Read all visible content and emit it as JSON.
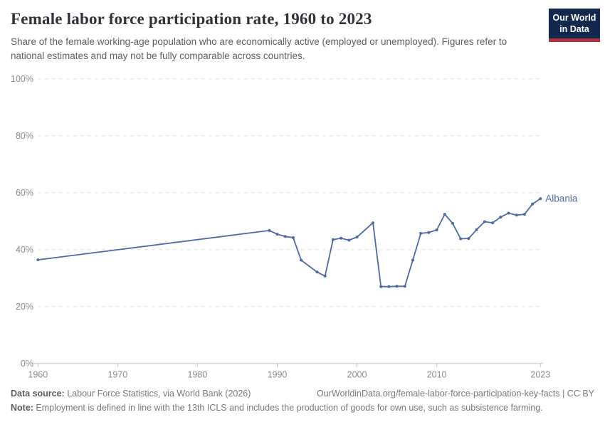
{
  "header": {
    "title": "Female labor force participation rate, 1960 to 2023",
    "subtitle": "Share of the female working-age population who are economically active (employed or unemployed). Figures refer to national estimates and may not be fully comparable across countries.",
    "logo": {
      "line1": "Our World",
      "line2": "in Data"
    }
  },
  "chart_data": {
    "type": "line",
    "title": "Female labor force participation rate, 1960 to 2023",
    "unit": "%",
    "xlim": [
      1960,
      2023
    ],
    "ylim": [
      0,
      100
    ],
    "x_ticks": [
      1960,
      1970,
      1980,
      1990,
      2000,
      2010,
      2023
    ],
    "y_ticks": [
      0,
      20,
      40,
      60,
      80,
      100
    ],
    "grid": true,
    "legend_position": "end-of-line",
    "series": [
      {
        "name": "Albania",
        "color": "#4e69a7",
        "points": [
          [
            1960,
            36.4
          ],
          [
            1989,
            46.7
          ],
          [
            1990,
            45.4
          ],
          [
            1991,
            44.6
          ],
          [
            1992,
            44.2
          ],
          [
            1993,
            36.3
          ],
          [
            1995,
            32.1
          ],
          [
            1996,
            30.7
          ],
          [
            1997,
            43.5
          ],
          [
            1998,
            44.0
          ],
          [
            1999,
            43.3
          ],
          [
            2000,
            44.4
          ],
          [
            2002,
            49.4
          ],
          [
            2003,
            27.0
          ],
          [
            2004,
            27.0
          ],
          [
            2005,
            27.1
          ],
          [
            2006,
            27.1
          ],
          [
            2007,
            36.3
          ],
          [
            2008,
            45.7
          ],
          [
            2009,
            46.0
          ],
          [
            2010,
            46.9
          ],
          [
            2011,
            52.4
          ],
          [
            2012,
            49.2
          ],
          [
            2013,
            43.8
          ],
          [
            2014,
            43.9
          ],
          [
            2015,
            47.0
          ],
          [
            2016,
            49.8
          ],
          [
            2017,
            49.4
          ],
          [
            2018,
            51.4
          ],
          [
            2019,
            52.8
          ],
          [
            2020,
            52.1
          ],
          [
            2021,
            52.4
          ],
          [
            2022,
            56.0
          ],
          [
            2023,
            57.9
          ]
        ]
      }
    ]
  },
  "footer": {
    "data_source_label": "Data source:",
    "data_source": " Labour Force Statistics, via World Bank (2026)",
    "link": "OurWorldinData.org/female-labor-force-participation-key-facts | CC BY",
    "note_label": "Note:",
    "note": " Employment is defined in line with the 13th ICLS and includes the production of goods for own use, such as subsistence farming."
  }
}
